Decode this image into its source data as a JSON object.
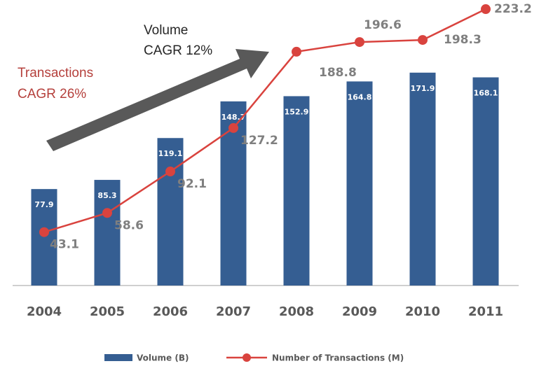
{
  "chart_data": {
    "type": "bar_line",
    "annotations": [
      "Volume",
      "CAGR 12%",
      "Transactions",
      "CAGR 26%"
    ],
    "categories": [
      "2004",
      "2005",
      "2006",
      "2007",
      "2008",
      "2009",
      "2010",
      "2011"
    ],
    "series": [
      {
        "name": "Volume (B)",
        "type": "bar",
        "color": "#355e92",
        "values": [
          77.9,
          85.3,
          119.1,
          148.7,
          152.9,
          164.8,
          171.9,
          168.1
        ]
      },
      {
        "name": "Number of Transactions (M)",
        "type": "line",
        "axis": "y2",
        "color": "#d9433e",
        "values": [
          43.1,
          58.6,
          92.1,
          127.2,
          188.8,
          196.6,
          198.3,
          223.2
        ]
      }
    ],
    "ylim": [
      0,
      230
    ],
    "y2lim": [
      0,
      230
    ]
  }
}
